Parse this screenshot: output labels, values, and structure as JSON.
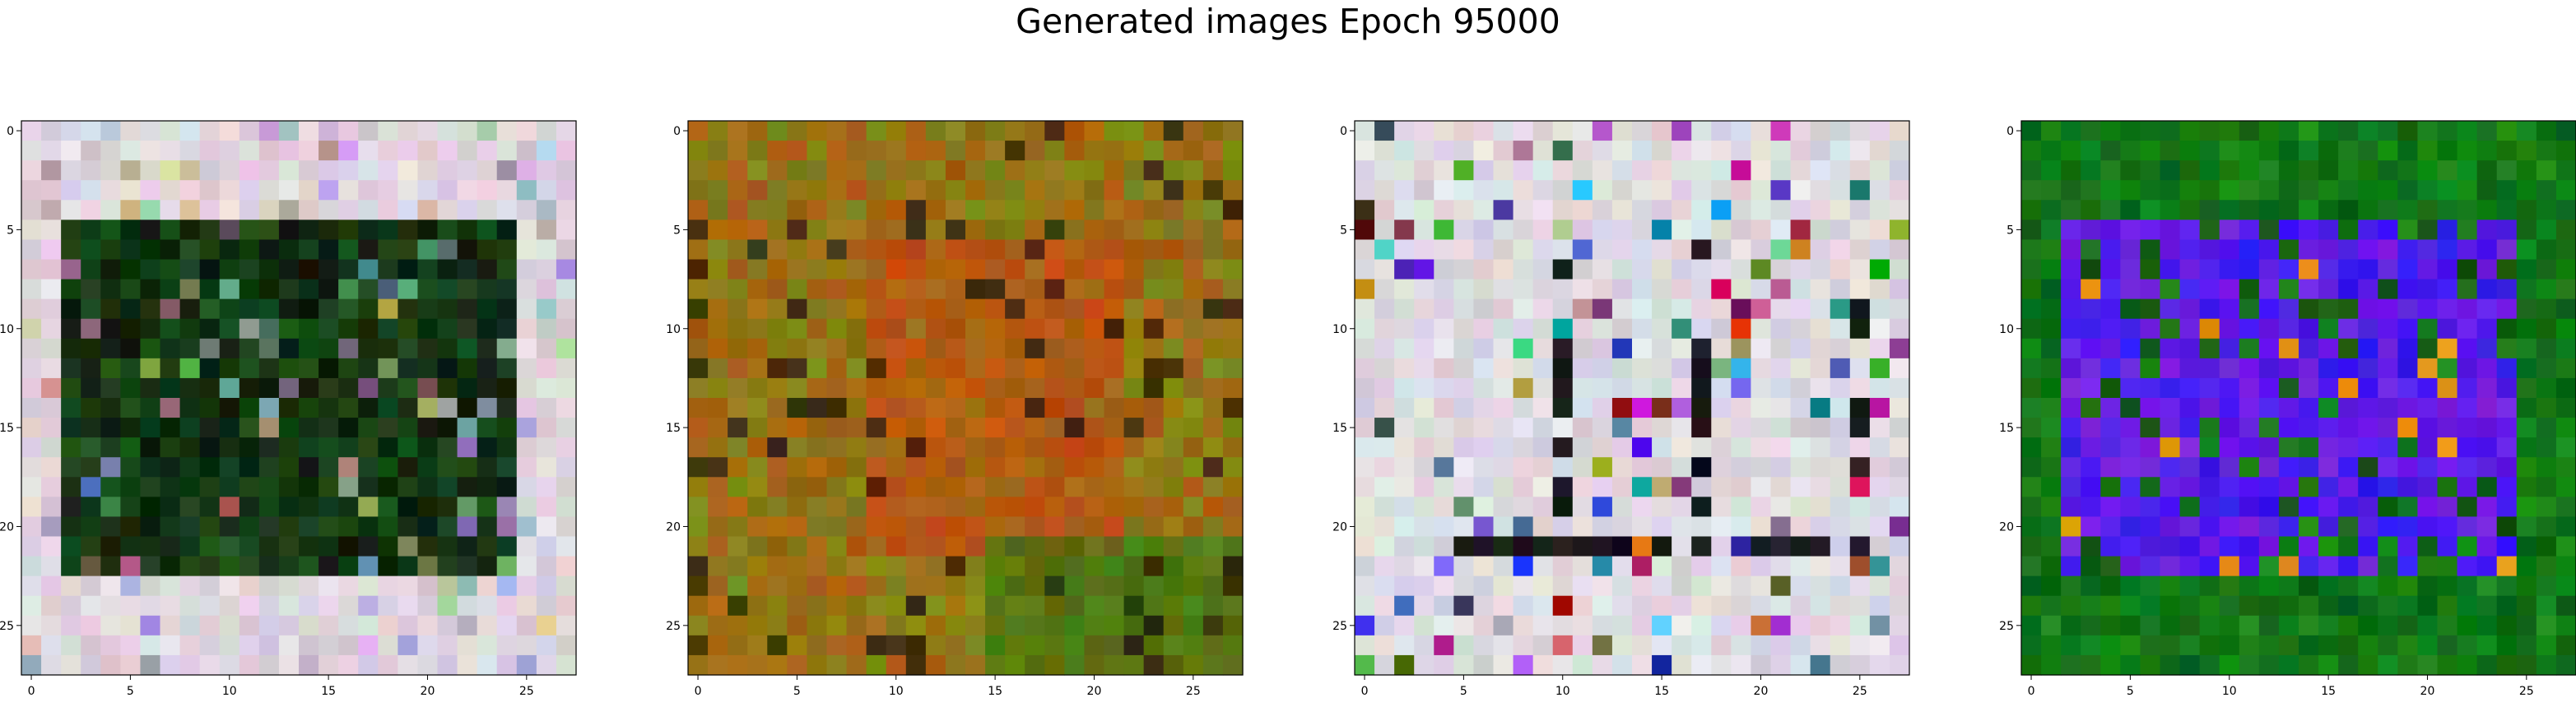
{
  "figure": {
    "title": "Generated images Epoch 95000"
  },
  "chart_data": [
    {
      "type": "heatmap",
      "title": "",
      "xlabel": "",
      "ylabel": "",
      "xlim": [
        -0.5,
        27.5
      ],
      "ylim": [
        27.5,
        -0.5
      ],
      "x_ticks": [
        0,
        5,
        10,
        15,
        20,
        25
      ],
      "y_ticks": [
        0,
        5,
        10,
        15,
        20,
        25
      ],
      "x_tick_labels": [
        "0",
        "5",
        "10",
        "15",
        "20",
        "25"
      ],
      "y_tick_labels": [
        "0",
        "5",
        "10",
        "15",
        "20",
        "25"
      ],
      "grid_size": [
        28,
        28
      ],
      "pattern": "dark-center-on-light-frame",
      "colors": {
        "background": "#d8ccd6",
        "foreground": "#0a1a0a",
        "accent": "#2a6a2a"
      }
    },
    {
      "type": "heatmap",
      "title": "",
      "xlabel": "",
      "ylabel": "",
      "xlim": [
        -0.5,
        27.5
      ],
      "ylim": [
        27.5,
        -0.5
      ],
      "x_ticks": [
        0,
        5,
        10,
        15,
        20,
        25
      ],
      "y_ticks": [
        0,
        5,
        10,
        15,
        20,
        25
      ],
      "x_tick_labels": [
        "0",
        "5",
        "10",
        "15",
        "20",
        "25"
      ],
      "y_tick_labels": [
        "0",
        "5",
        "10",
        "15",
        "20",
        "25"
      ],
      "grid_size": [
        28,
        28
      ],
      "pattern": "warm-noise",
      "colors": {
        "background": "#7a8a1a",
        "foreground": "#c84a10",
        "accent": "#2a7a10"
      }
    },
    {
      "type": "heatmap",
      "title": "",
      "xlabel": "",
      "ylabel": "",
      "xlim": [
        -0.5,
        27.5
      ],
      "ylim": [
        27.5,
        -0.5
      ],
      "x_ticks": [
        0,
        5,
        10,
        15,
        20,
        25
      ],
      "y_ticks": [
        0,
        5,
        10,
        15,
        20,
        25
      ],
      "x_tick_labels": [
        "0",
        "5",
        "10",
        "15",
        "20",
        "25"
      ],
      "y_tick_labels": [
        "0",
        "5",
        "10",
        "15",
        "20",
        "25"
      ],
      "grid_size": [
        28,
        28
      ],
      "pattern": "light-noise-with-dark-strokes",
      "colors": {
        "background": "#d6d2da",
        "foreground": "#101010",
        "accent": "#c040c0"
      }
    },
    {
      "type": "heatmap",
      "title": "",
      "xlabel": "",
      "ylabel": "",
      "xlim": [
        -0.5,
        27.5
      ],
      "ylim": [
        27.5,
        -0.5
      ],
      "x_ticks": [
        0,
        5,
        10,
        15,
        20,
        25
      ],
      "y_ticks": [
        0,
        5,
        10,
        15,
        20,
        25
      ],
      "x_tick_labels": [
        "0",
        "5",
        "10",
        "15",
        "20",
        "25"
      ],
      "y_tick_labels": [
        "0",
        "5",
        "10",
        "15",
        "20",
        "25"
      ],
      "grid_size": [
        28,
        28
      ],
      "pattern": "blue-center-on-green",
      "colors": {
        "background": "#1a8a1a",
        "foreground": "#3018f0",
        "accent": "#7a20e0"
      }
    }
  ]
}
